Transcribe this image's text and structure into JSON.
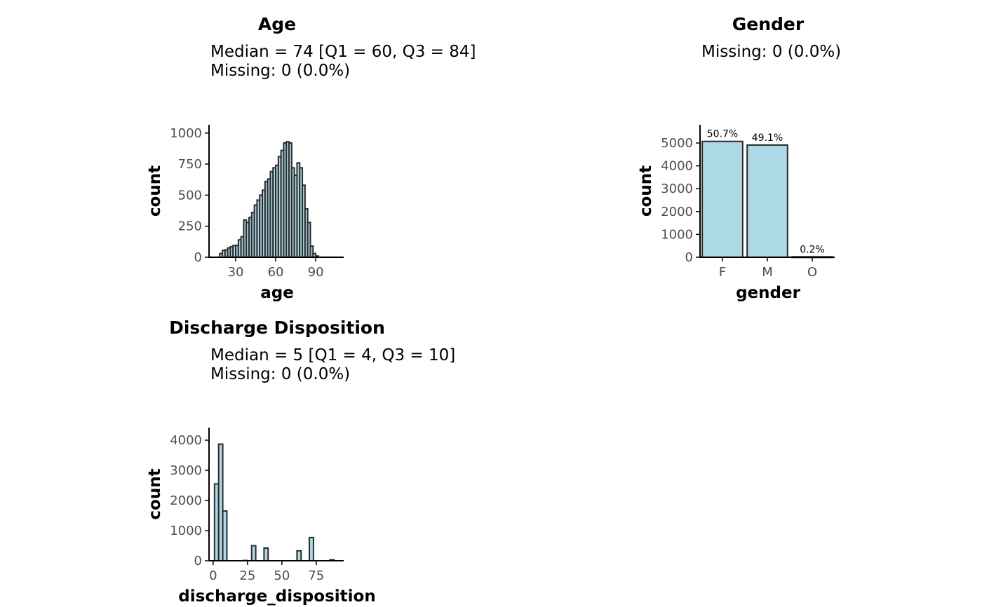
{
  "panels": {
    "age": {
      "title": "Age",
      "stats_line1": "Median = 74 [Q1 = 60, Q3 = 84]",
      "stats_line2": "Missing: 0 (0.0%)"
    },
    "gender": {
      "title": "Gender",
      "stats_line1": "Missing: 0 (0.0%)"
    },
    "discharge": {
      "title": "Discharge Disposition",
      "stats_line1": "Median = 5 [Q1 = 4, Q3 = 10]",
      "stats_line2": "Missing: 0 (0.0%)"
    }
  },
  "colors": {
    "bar_fill": "#add8e6",
    "bar_stroke": "#2b2b2b",
    "axis": "#000000",
    "tick_text": "#4d4d4d"
  },
  "chart_data": [
    {
      "id": "age",
      "type": "bar",
      "subtype": "histogram",
      "xlabel": "age",
      "ylabel": "count",
      "xlim": [
        10,
        111
      ],
      "ylim": [
        0,
        1010
      ],
      "xticks": [
        30,
        60,
        90
      ],
      "yticks": [
        0,
        250,
        500,
        750,
        1000
      ],
      "bin_width": 2,
      "bins_start": [
        18,
        20,
        22,
        24,
        26,
        28,
        30,
        32,
        34,
        36,
        38,
        40,
        42,
        44,
        46,
        48,
        50,
        52,
        54,
        56,
        58,
        60,
        62,
        64,
        66,
        68,
        70,
        72,
        74,
        76,
        78,
        80,
        82,
        84,
        86,
        88,
        90,
        92,
        94,
        96,
        98,
        100,
        102
      ],
      "values": [
        30,
        55,
        60,
        75,
        85,
        95,
        95,
        140,
        165,
        300,
        280,
        320,
        360,
        420,
        460,
        500,
        540,
        610,
        630,
        690,
        720,
        740,
        810,
        860,
        920,
        930,
        920,
        720,
        660,
        760,
        720,
        580,
        390,
        280,
        90,
        30,
        10,
        0,
        0,
        0,
        0,
        0,
        0
      ]
    },
    {
      "id": "gender",
      "type": "bar",
      "xlabel": "gender",
      "ylabel": "count",
      "categories": [
        "F",
        "M",
        "O"
      ],
      "values": [
        5070,
        4910,
        20
      ],
      "labels": [
        "50.7%",
        "49.1%",
        "0.2%"
      ],
      "ylim": [
        0,
        5000
      ],
      "yticks": [
        0,
        1000,
        2000,
        3000,
        4000,
        5000
      ]
    },
    {
      "id": "discharge",
      "type": "bar",
      "subtype": "histogram",
      "xlabel": "discharge_disposition",
      "ylabel": "count",
      "xlim": [
        -3,
        95
      ],
      "ylim": [
        0,
        4000
      ],
      "xticks": [
        0,
        25,
        50,
        75
      ],
      "yticks": [
        0,
        1000,
        2000,
        3000,
        4000
      ],
      "bin_width": 3,
      "bins_start": [
        1,
        4,
        7,
        10,
        13,
        16,
        19,
        22,
        25,
        28,
        31,
        34,
        37,
        40,
        43,
        46,
        49,
        52,
        55,
        58,
        61,
        64,
        67,
        70,
        73,
        76,
        79,
        82,
        85,
        88
      ],
      "values": [
        2550,
        3870,
        1650,
        0,
        0,
        0,
        0,
        10,
        0,
        500,
        0,
        0,
        420,
        0,
        0,
        0,
        0,
        0,
        0,
        0,
        330,
        0,
        0,
        770,
        0,
        0,
        0,
        0,
        30,
        0
      ]
    }
  ]
}
